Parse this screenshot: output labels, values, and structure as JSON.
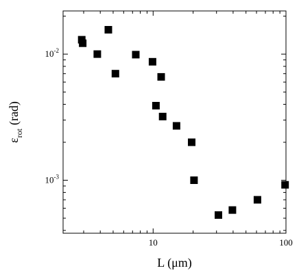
{
  "chart_data": {
    "type": "scatter",
    "title": "",
    "xlabel": "L (μm)",
    "ylabel": {
      "main": "ε",
      "sub": "rot",
      "unit": "(rad)"
    },
    "x_scale": "log",
    "y_scale": "log",
    "xlim": [
      2.1,
      100
    ],
    "ylim": [
      0.00038,
      0.022
    ],
    "x_ticks": [
      {
        "value": 10,
        "label": "10"
      },
      {
        "value": 100,
        "label": "100"
      }
    ],
    "y_ticks": [
      {
        "value": 0.01,
        "base": "10",
        "exp": "-2"
      },
      {
        "value": 0.001,
        "base": "10",
        "exp": "-3"
      }
    ],
    "grid": false,
    "legend": "none",
    "marker": "square",
    "marker_color": "#000000",
    "series": [
      {
        "x": [
          2.9,
          2.95,
          3.8,
          4.6,
          5.2,
          7.4,
          9.9,
          10.5,
          11.5,
          11.8,
          15,
          19.5,
          20.3,
          31,
          39.5,
          61,
          98.5
        ],
        "y": [
          0.013,
          0.0122,
          0.01,
          0.0156,
          0.007,
          0.0099,
          0.0087,
          0.0039,
          0.0066,
          0.0032,
          0.0027,
          0.002,
          0.001,
          0.00053,
          0.00058,
          0.0007,
          0.00092
        ]
      }
    ]
  }
}
